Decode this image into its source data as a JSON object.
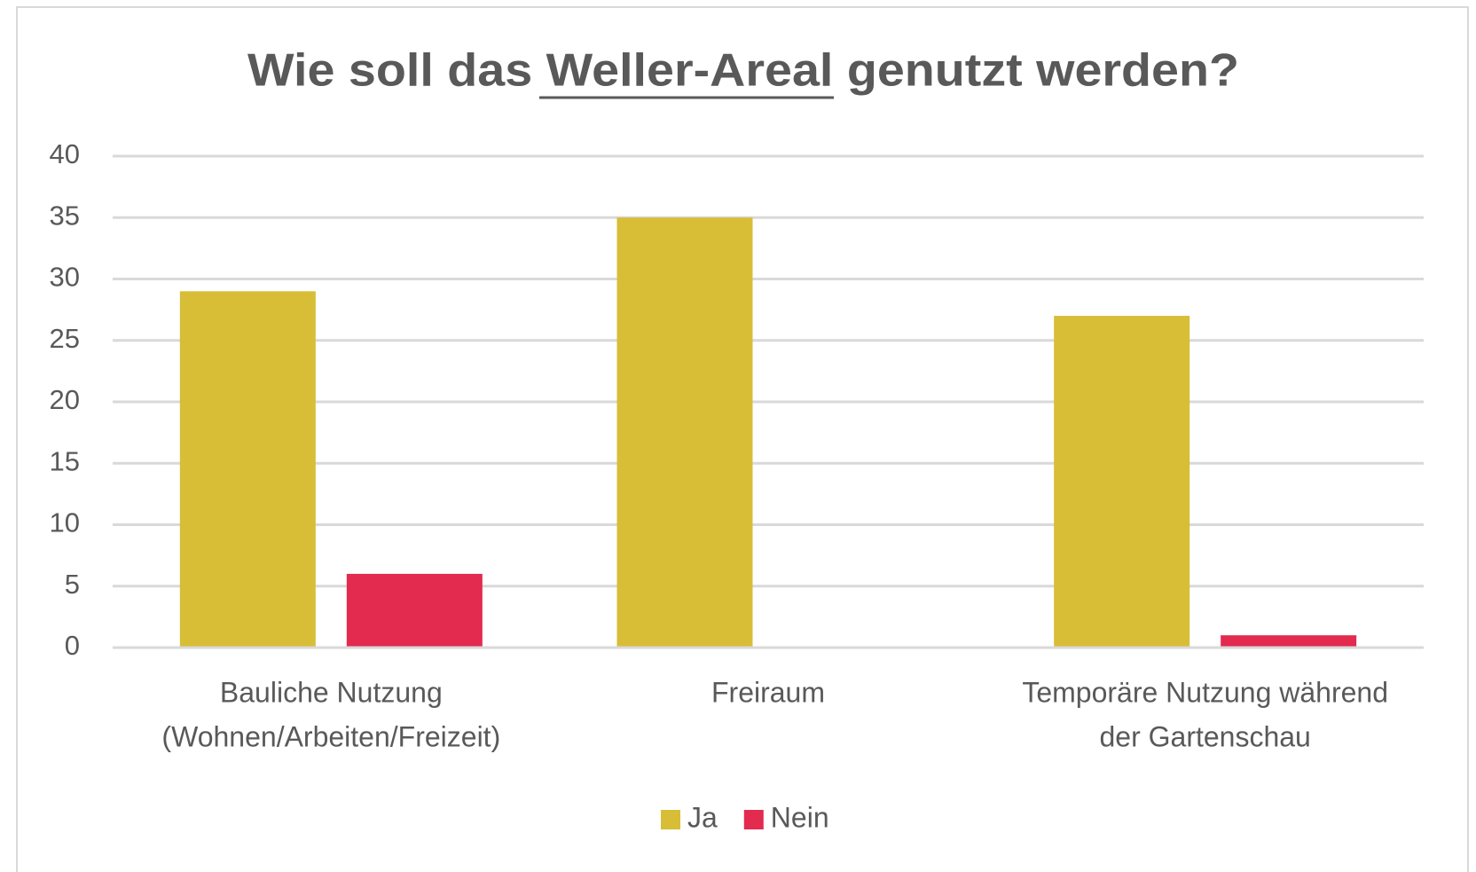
{
  "chart_data": {
    "type": "bar",
    "title": "Wie soll das Weller-Areal genutzt werden?",
    "categories": [
      [
        "Bauliche Nutzung",
        "(Wohnen/Arbeiten/Freizeit)"
      ],
      [
        "Freiraum"
      ],
      [
        "Temporäre Nutzung während",
        "der Gartenschau"
      ]
    ],
    "series": [
      {
        "name": "Ja",
        "color": "#d8bd37",
        "values": [
          29,
          35,
          27
        ]
      },
      {
        "name": "Nein",
        "color": "#e32a4f",
        "values": [
          6,
          0,
          1
        ]
      }
    ],
    "ylim": [
      0,
      40
    ],
    "yticks": [
      0,
      5,
      10,
      15,
      20,
      25,
      30,
      35,
      40
    ],
    "grid": true,
    "legend": "bottom"
  }
}
